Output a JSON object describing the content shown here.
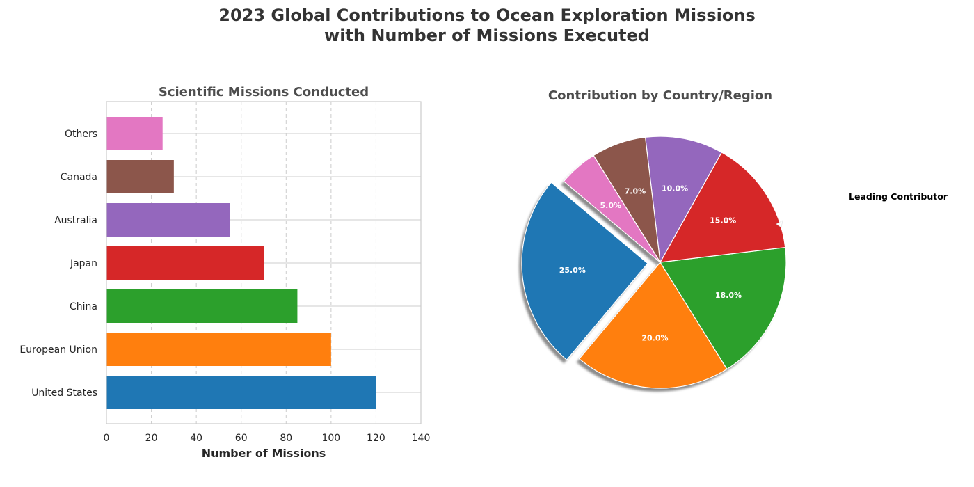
{
  "title_line1": "2023 Global Contributions to Ocean Exploration Missions",
  "title_line2": "with Number of Missions Executed",
  "chart_data": [
    {
      "type": "bar",
      "orientation": "horizontal",
      "title": "Scientific Missions Conducted",
      "xlabel": "Number of Missions",
      "ylabel": "",
      "categories": [
        "United States",
        "European Union",
        "China",
        "Japan",
        "Australia",
        "Canada",
        "Others"
      ],
      "values": [
        120,
        100,
        85,
        70,
        55,
        30,
        25
      ],
      "colors": [
        "#1f77b4",
        "#ff7f0e",
        "#2ca02c",
        "#d62728",
        "#9467bd",
        "#8c564b",
        "#e377c2"
      ],
      "xlim": [
        0,
        140
      ],
      "xticks": [
        0,
        20,
        40,
        60,
        80,
        100,
        120,
        140
      ],
      "grid": true
    },
    {
      "type": "pie",
      "title": "Contribution by Country/Region",
      "categories": [
        "United States",
        "European Union",
        "China",
        "Japan",
        "Australia",
        "Canada",
        "Others"
      ],
      "values": [
        25,
        20,
        18,
        15,
        10,
        7,
        5
      ],
      "labels": [
        "25.0%",
        "20.0%",
        "18.0%",
        "15.0%",
        "10.0%",
        "7.0%",
        "5.0%"
      ],
      "colors": [
        "#1f77b4",
        "#ff7f0e",
        "#2ca02c",
        "#d62728",
        "#9467bd",
        "#8c564b",
        "#e377c2"
      ],
      "exploded": "United States",
      "shadow": true,
      "annotation": "Leading Contributor"
    }
  ]
}
